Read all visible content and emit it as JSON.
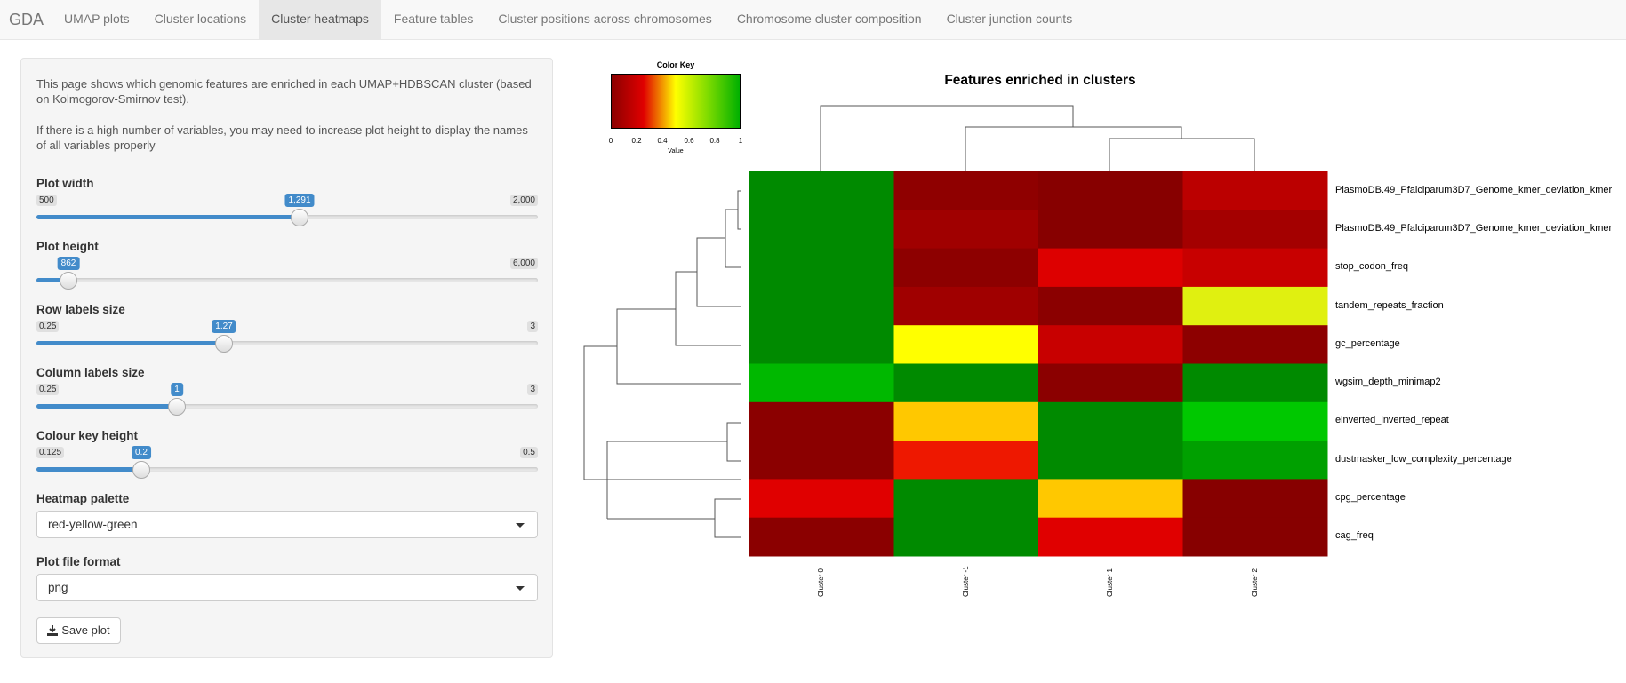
{
  "navbar": {
    "brand": "GDA",
    "tabs": [
      {
        "label": "UMAP plots",
        "active": false
      },
      {
        "label": "Cluster locations",
        "active": false
      },
      {
        "label": "Cluster heatmaps",
        "active": true
      },
      {
        "label": "Feature tables",
        "active": false
      },
      {
        "label": "Cluster positions across chromosomes",
        "active": false
      },
      {
        "label": "Chromosome cluster composition",
        "active": false
      },
      {
        "label": "Cluster junction counts",
        "active": false
      }
    ]
  },
  "sidebar": {
    "description_1": "This page shows which genomic features are enriched in each UMAP+HDBSCAN cluster (based on Kolmogorov-Smirnov test).",
    "description_2": "If there is a high number of variables, you may need to increase plot height to display the names of all variables properly",
    "sliders": [
      {
        "label": "Plot width",
        "min": "500",
        "max": "2,000",
        "value": "1,291",
        "fraction": 0.527
      },
      {
        "label": "Plot height",
        "min": "",
        "max": "6,000",
        "value": "862",
        "fraction": 0.063
      },
      {
        "label": "Row labels size",
        "min": "0.25",
        "max": "3",
        "value": "1.27",
        "fraction": 0.375
      },
      {
        "label": "Column labels size",
        "min": "0.25",
        "max": "3",
        "value": "1",
        "fraction": 0.281
      },
      {
        "label": "Colour key height",
        "min": "0.125",
        "max": "0.5",
        "value": "0.2",
        "fraction": 0.21
      }
    ],
    "palette": {
      "label": "Heatmap palette",
      "value": "red-yellow-green"
    },
    "file_format": {
      "label": "Plot file format",
      "value": "png"
    },
    "save_button": "Save plot"
  },
  "heatmap": {
    "title": "Features enriched in clusters",
    "color_key": {
      "title": "Color Key",
      "ticks": [
        "0",
        "0.2",
        "0.4",
        "0.6",
        "0.8",
        "1"
      ],
      "value_label": "Value",
      "colors": [
        "#8b0000",
        "#e00000",
        "#ffff00",
        "#7fdc00",
        "#00b000"
      ]
    },
    "columns": [
      "Cluster 0",
      "Cluster -1",
      "Cluster 1",
      "Cluster 2"
    ],
    "rows": [
      "PlasmoDB.49_Pfalciparum3D7_Genome_kmer_deviation_kmer",
      "PlasmoDB.49_Pfalciparum3D7_Genome_kmer_deviation_kmer",
      "stop_codon_freq",
      "tandem_repeats_fraction",
      "gc_percentage",
      "wgsim_depth_minimap2",
      "einverted_inverted_repeat",
      "dustmasker_low_complexity_percentage",
      "cpg_percentage",
      "cag_freq"
    ],
    "cells": [
      [
        "#008a00",
        "#8f0000",
        "#870000",
        "#bb0000"
      ],
      [
        "#008a00",
        "#a00000",
        "#870000",
        "#a40000"
      ],
      [
        "#008a00",
        "#8d0000",
        "#dd0000",
        "#c80000"
      ],
      [
        "#008a00",
        "#a00000",
        "#8b0000",
        "#e0f010"
      ],
      [
        "#008a00",
        "#ffff00",
        "#c80000",
        "#8d0000"
      ],
      [
        "#00b800",
        "#008a00",
        "#8b0000",
        "#008a00"
      ],
      [
        "#8b0000",
        "#ffc800",
        "#008a00",
        "#00c800"
      ],
      [
        "#8b0000",
        "#ee1800",
        "#008a00",
        "#00a000"
      ],
      [
        "#e00000",
        "#008a00",
        "#ffc800",
        "#870000"
      ],
      [
        "#8b0000",
        "#008a00",
        "#e00000",
        "#870000"
      ]
    ]
  }
}
